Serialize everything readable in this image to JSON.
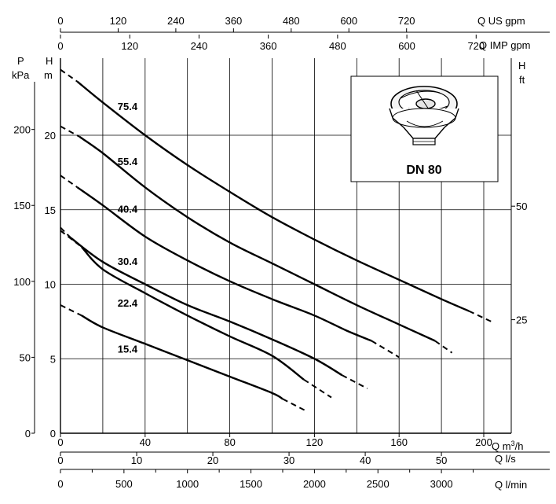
{
  "chart_data": {
    "type": "line",
    "x": {
      "title": "Q m³/h",
      "title_main": "Q m",
      "title_sup": "3",
      "title_end": "/h",
      "range": [
        0,
        205
      ],
      "ticks": [
        0,
        40,
        80,
        120,
        160,
        200
      ]
    },
    "y": {
      "title": "H m",
      "range": [
        0,
        25
      ],
      "ticks": [
        0,
        5,
        10,
        15,
        20
      ]
    },
    "secondary_axes": {
      "top_us_gpm": {
        "title": "Q US gpm",
        "ticks": [
          0,
          120,
          240,
          360,
          480,
          600,
          720
        ]
      },
      "top_imp_gpm": {
        "title": "Q IMP gpm",
        "ticks": [
          0,
          120,
          240,
          360,
          480,
          600,
          720
        ]
      },
      "bottom_ls": {
        "title": "Q l/s",
        "ticks": [
          0,
          10,
          20,
          30,
          40,
          50
        ]
      },
      "bottom_lmin": {
        "title": "Q l/min",
        "ticks": [
          0,
          500,
          1000,
          1500,
          2000,
          2500,
          3000
        ]
      },
      "left_kpa": {
        "title_top": "P",
        "title_bottom": "kPa",
        "ticks": [
          0,
          50,
          100,
          150,
          200
        ]
      },
      "right_ft": {
        "title": "H ft",
        "ticks": [
          25,
          50
        ]
      }
    },
    "grid": true,
    "series": [
      {
        "name": "75.4",
        "dashed_start": [
          [
            0,
            24.4
          ],
          [
            8,
            23.6
          ]
        ],
        "points": [
          [
            8,
            23.6
          ],
          [
            20,
            22.2
          ],
          [
            40,
            20.0
          ],
          [
            60,
            18.0
          ],
          [
            80,
            16.2
          ],
          [
            100,
            14.5
          ],
          [
            120,
            13.0
          ],
          [
            140,
            11.6
          ],
          [
            160,
            10.3
          ],
          [
            180,
            9.0
          ],
          [
            193,
            8.2
          ]
        ],
        "dashed_end": [
          [
            193,
            8.2
          ],
          [
            205,
            7.4
          ]
        ]
      },
      {
        "name": "55.4",
        "dashed_start": [
          [
            0,
            20.6
          ],
          [
            9,
            19.9
          ]
        ],
        "points": [
          [
            9,
            19.9
          ],
          [
            20,
            18.8
          ],
          [
            40,
            16.5
          ],
          [
            60,
            14.5
          ],
          [
            80,
            12.8
          ],
          [
            100,
            11.4
          ],
          [
            120,
            10.0
          ],
          [
            140,
            8.6
          ],
          [
            160,
            7.3
          ],
          [
            177,
            6.2
          ]
        ],
        "dashed_end": [
          [
            177,
            6.2
          ],
          [
            185,
            5.4
          ]
        ]
      },
      {
        "name": "40.4",
        "dashed_start": [
          [
            0,
            17.3
          ],
          [
            8,
            16.5
          ]
        ],
        "points": [
          [
            8,
            16.5
          ],
          [
            20,
            15.3
          ],
          [
            40,
            13.2
          ],
          [
            60,
            11.6
          ],
          [
            80,
            10.2
          ],
          [
            100,
            9.0
          ],
          [
            120,
            7.9
          ],
          [
            135,
            6.9
          ],
          [
            147,
            6.2
          ]
        ],
        "dashed_end": [
          [
            147,
            6.2
          ],
          [
            160,
            5.1
          ]
        ]
      },
      {
        "name": "30.4",
        "dashed_start": [
          [
            0,
            13.8
          ],
          [
            5,
            13.1
          ]
        ],
        "points": [
          [
            5,
            13.1
          ],
          [
            20,
            11.5
          ],
          [
            40,
            10.0
          ],
          [
            60,
            8.6
          ],
          [
            80,
            7.5
          ],
          [
            100,
            6.3
          ],
          [
            120,
            5.0
          ],
          [
            133,
            3.9
          ]
        ],
        "dashed_end": [
          [
            133,
            3.9
          ],
          [
            145,
            3.0
          ]
        ]
      },
      {
        "name": "22.4",
        "dashed_start": [
          [
            0,
            13.6
          ],
          [
            10,
            12.5
          ]
        ],
        "points": [
          [
            10,
            12.5
          ],
          [
            20,
            11.0
          ],
          [
            40,
            9.4
          ],
          [
            60,
            7.9
          ],
          [
            80,
            6.5
          ],
          [
            100,
            5.2
          ],
          [
            115,
            3.6
          ]
        ],
        "dashed_end": [
          [
            115,
            3.6
          ],
          [
            128,
            2.4
          ]
        ]
      },
      {
        "name": "15.4",
        "dashed_start": [
          [
            0,
            8.6
          ],
          [
            10,
            7.9
          ]
        ],
        "points": [
          [
            10,
            7.9
          ],
          [
            20,
            7.1
          ],
          [
            40,
            6.0
          ],
          [
            60,
            4.9
          ],
          [
            80,
            3.8
          ],
          [
            100,
            2.7
          ],
          [
            105,
            2.3
          ]
        ],
        "dashed_end": [
          [
            105,
            2.3
          ],
          [
            116,
            1.5
          ]
        ]
      }
    ],
    "annotations": [
      {
        "text": "75.4",
        "x": 27,
        "y": 21.7
      },
      {
        "text": "55.4",
        "x": 27,
        "y": 18.0
      },
      {
        "text": "40.4",
        "x": 27,
        "y": 14.8
      },
      {
        "text": "30.4",
        "x": 27,
        "y": 11.3
      },
      {
        "text": "22.4",
        "x": 27,
        "y": 8.5
      },
      {
        "text": "15.4",
        "x": 27,
        "y": 5.4
      }
    ]
  },
  "inset": {
    "title": "DN 80",
    "icon": "impeller-icon"
  }
}
